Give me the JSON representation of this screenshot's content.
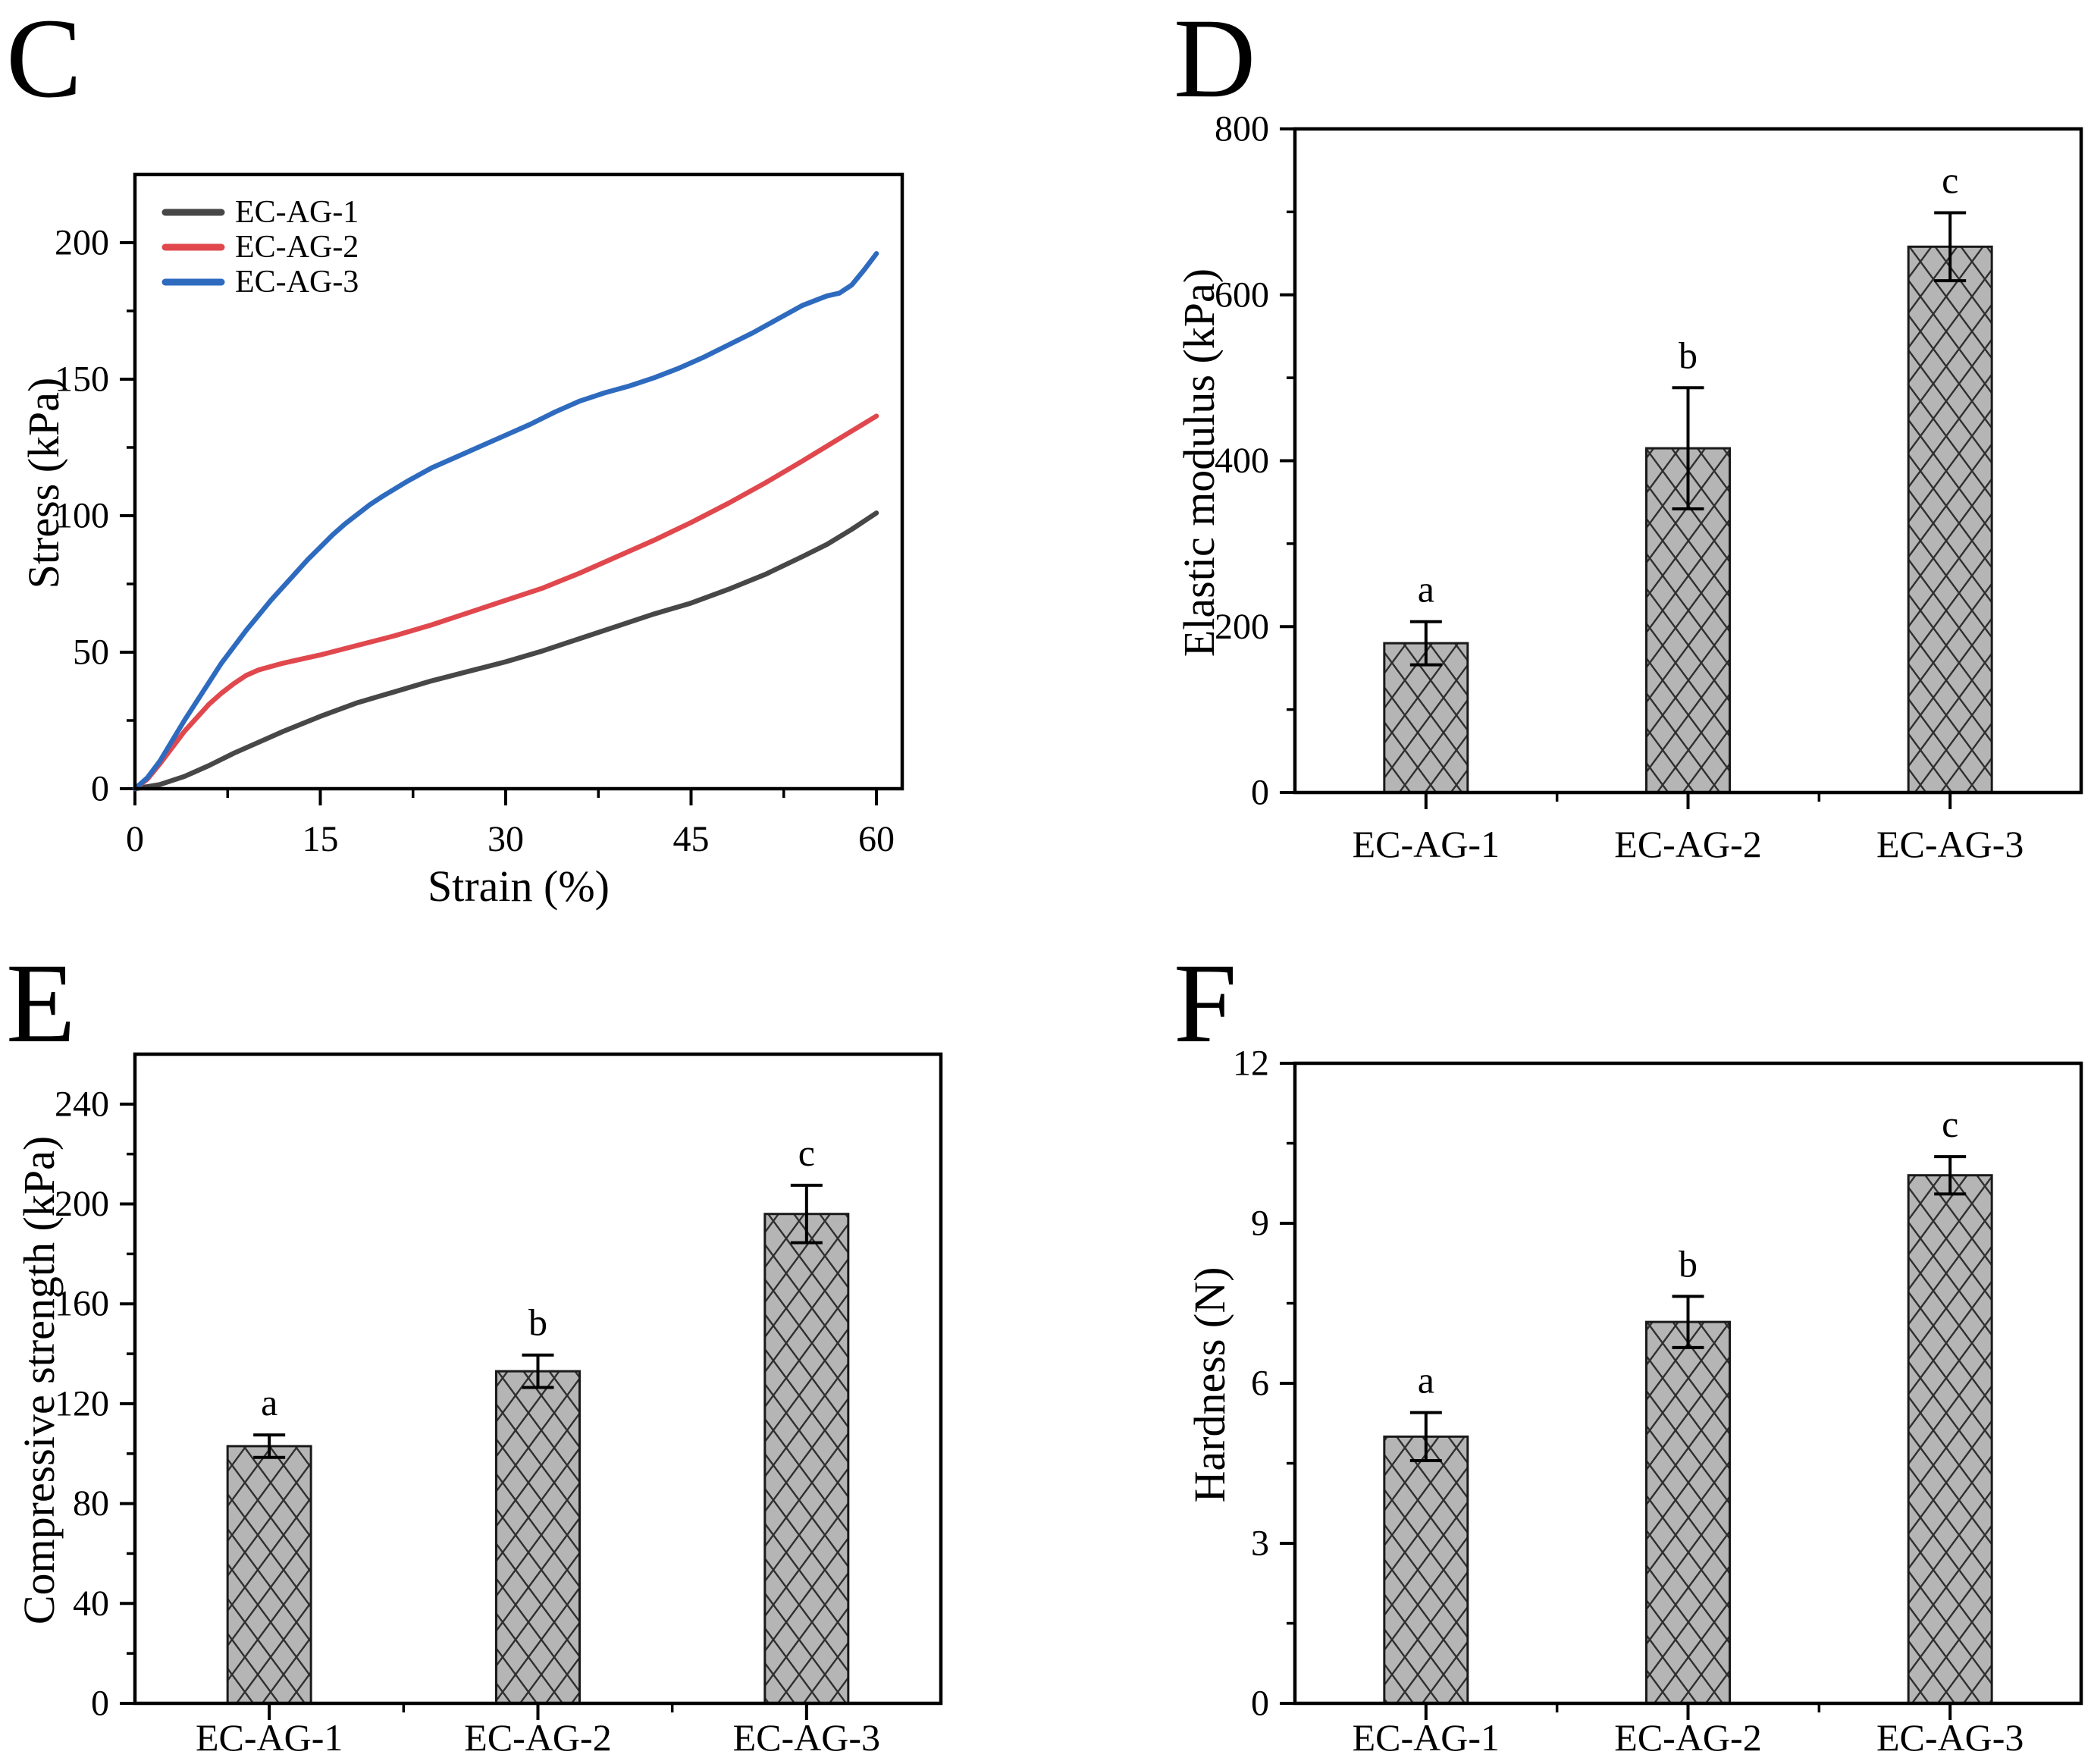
{
  "figure": {
    "background": "#ffffff",
    "frame_color": "#000000",
    "bar_fill": "#b5b5b5",
    "bar_hatch_color": "#2f2f2f",
    "bar_edge_color": "#1a1a1a"
  },
  "chart_data": [
    {
      "panel_label": "C",
      "type": "line",
      "title": "",
      "xlabel": "Strain (%)",
      "ylabel": "Stress (kPa)",
      "xlim": [
        0,
        62
      ],
      "ylim": [
        0,
        225
      ],
      "xticks": [
        0,
        15,
        30,
        45,
        60
      ],
      "yticks": [
        0,
        50,
        100,
        150,
        200
      ],
      "x_minor_ticks": [
        7.5,
        22.5,
        37.5,
        52.5
      ],
      "y_minor_ticks": [
        25,
        75,
        125,
        175
      ],
      "grid": "off",
      "legend_position": "top-left",
      "series": [
        {
          "name": "EC-AG-1",
          "color": "#474747",
          "points": [
            [
              0,
              0
            ],
            [
              2,
              1.5
            ],
            [
              4,
              4.5
            ],
            [
              6,
              8.5
            ],
            [
              8,
              13
            ],
            [
              10,
              17
            ],
            [
              12,
              21
            ],
            [
              15,
              26.5
            ],
            [
              18,
              31.5
            ],
            [
              21,
              35.5
            ],
            [
              24,
              39.5
            ],
            [
              27,
              43
            ],
            [
              30,
              46.5
            ],
            [
              33,
              50.5
            ],
            [
              36,
              55
            ],
            [
              39,
              59.5
            ],
            [
              42,
              64
            ],
            [
              45,
              68
            ],
            [
              48,
              73
            ],
            [
              51,
              78.5
            ],
            [
              54,
              85
            ],
            [
              56,
              89.5
            ],
            [
              58,
              95
            ],
            [
              60,
              101
            ]
          ]
        },
        {
          "name": "EC-AG-2",
          "color": "#e0484e",
          "points": [
            [
              0,
              0
            ],
            [
              1,
              3.5
            ],
            [
              2,
              9
            ],
            [
              3,
              15
            ],
            [
              4,
              21
            ],
            [
              5,
              26
            ],
            [
              6,
              31
            ],
            [
              7,
              35
            ],
            [
              8,
              38.5
            ],
            [
              9,
              41.5
            ],
            [
              10,
              43.5
            ],
            [
              12,
              46
            ],
            [
              15,
              49
            ],
            [
              18,
              52.5
            ],
            [
              21,
              56
            ],
            [
              24,
              60
            ],
            [
              27,
              64.5
            ],
            [
              30,
              69
            ],
            [
              33,
              73.5
            ],
            [
              36,
              79
            ],
            [
              39,
              85
            ],
            [
              42,
              91
            ],
            [
              45,
              97.5
            ],
            [
              48,
              104.5
            ],
            [
              51,
              112
            ],
            [
              54,
              120
            ],
            [
              56,
              125.5
            ],
            [
              58,
              131
            ],
            [
              60,
              136.5
            ]
          ]
        },
        {
          "name": "EC-AG-3",
          "color": "#2e6bbf",
          "points": [
            [
              0,
              0
            ],
            [
              1,
              4
            ],
            [
              2,
              10
            ],
            [
              3,
              17.5
            ],
            [
              4,
              25
            ],
            [
              5,
              32
            ],
            [
              6,
              39
            ],
            [
              7,
              46
            ],
            [
              8,
              52
            ],
            [
              9,
              58
            ],
            [
              10,
              63.5
            ],
            [
              11,
              69
            ],
            [
              12,
              74
            ],
            [
              13,
              79
            ],
            [
              14,
              84
            ],
            [
              15,
              88.5
            ],
            [
              16,
              93
            ],
            [
              17,
              97
            ],
            [
              18,
              100.5
            ],
            [
              19,
              104
            ],
            [
              20,
              107
            ],
            [
              22,
              112.5
            ],
            [
              24,
              117.5
            ],
            [
              26,
              121.5
            ],
            [
              28,
              125.5
            ],
            [
              30,
              129.5
            ],
            [
              32,
              133.5
            ],
            [
              34,
              138
            ],
            [
              36,
              142
            ],
            [
              37,
              143.5
            ],
            [
              38,
              145
            ],
            [
              40,
              147.5
            ],
            [
              42,
              150.5
            ],
            [
              44,
              154
            ],
            [
              46,
              158
            ],
            [
              48,
              162.5
            ],
            [
              50,
              167
            ],
            [
              52,
              172
            ],
            [
              54,
              177
            ],
            [
              56,
              180.5
            ],
            [
              57,
              181.5
            ],
            [
              58,
              184.5
            ],
            [
              59,
              190
            ],
            [
              60,
              196
            ]
          ]
        }
      ]
    },
    {
      "panel_label": "D",
      "type": "bar",
      "title": "",
      "xlabel": "",
      "ylabel": "Elastic modulus (kPa)",
      "categories": [
        "EC-AG-1",
        "EC-AG-2",
        "EC-AG-3"
      ],
      "values": [
        180,
        415,
        658
      ],
      "errors": [
        26,
        73,
        41
      ],
      "sig_letters": [
        "a",
        "b",
        "c"
      ],
      "ylim": [
        0,
        800
      ],
      "yticks": [
        0,
        200,
        400,
        600,
        800
      ],
      "y_minor_ticks": [
        100,
        300,
        500,
        700
      ],
      "grid": "off"
    },
    {
      "panel_label": "E",
      "type": "bar",
      "title": "",
      "xlabel": "",
      "ylabel": "Compressive strength (kPa)",
      "categories": [
        "EC-AG-1",
        "EC-AG-2",
        "EC-AG-3"
      ],
      "values": [
        103,
        133,
        196
      ],
      "errors": [
        4.5,
        6.5,
        11.5
      ],
      "sig_letters": [
        "a",
        "b",
        "c"
      ],
      "ylim": [
        0,
        260
      ],
      "yticks": [
        0,
        40,
        80,
        120,
        160,
        200,
        240
      ],
      "y_minor_ticks": [
        20,
        60,
        100,
        140,
        180,
        220
      ],
      "grid": "off"
    },
    {
      "panel_label": "F",
      "type": "bar",
      "title": "",
      "xlabel": "",
      "ylabel": "Hardness (N)",
      "categories": [
        "EC-AG-1",
        "EC-AG-2",
        "EC-AG-3"
      ],
      "values": [
        5.0,
        7.15,
        9.9
      ],
      "errors": [
        0.45,
        0.48,
        0.35
      ],
      "sig_letters": [
        "a",
        "b",
        "c"
      ],
      "ylim": [
        0,
        12
      ],
      "yticks": [
        0,
        3,
        6,
        9,
        12
      ],
      "y_minor_ticks": [
        1.5,
        4.5,
        7.5,
        10.5
      ],
      "grid": "off"
    }
  ]
}
